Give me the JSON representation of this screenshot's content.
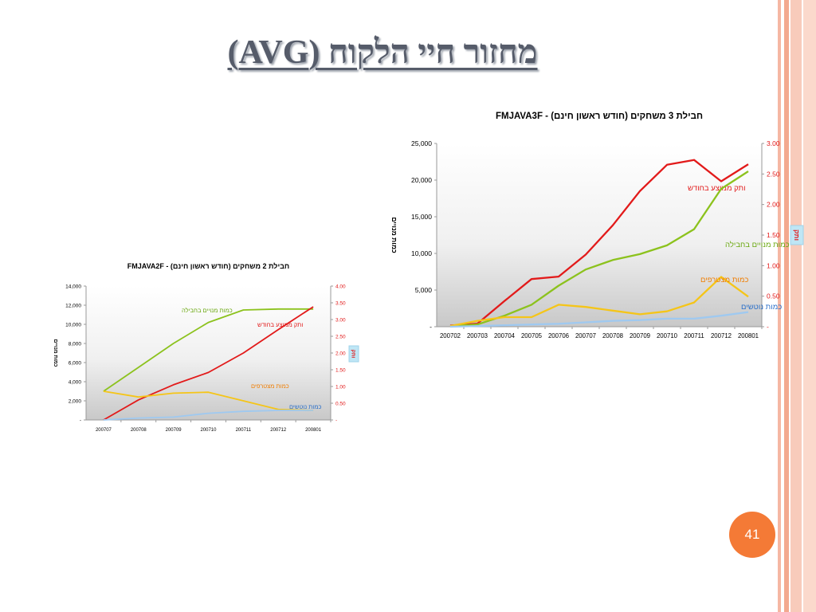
{
  "slide": {
    "title": "מחזור חיי הלקוח (AVG)",
    "page_number": "41"
  },
  "chart_data": [
    {
      "type": "line",
      "title": "חבילת 2 משחקים (חודש ראשון חינם) - FMJAVA2F",
      "categories": [
        "200707",
        "200708",
        "200709",
        "200710",
        "200711",
        "200712",
        "200801"
      ],
      "ylabel": "כמות מנויים",
      "y2label": "ותק",
      "ylim": [
        0,
        14000
      ],
      "y2lim": [
        0,
        4
      ],
      "yticks": [
        "-",
        "2,000",
        "4,000",
        "6,000",
        "8,000",
        "10,000",
        "12,000",
        "14,000"
      ],
      "y2ticks": [
        "-",
        "0.50",
        "1.00",
        "1.50",
        "2.00",
        "2.50",
        "3.00",
        "3.50",
        "4.00"
      ],
      "grid": false,
      "series": [
        {
          "name": "כמות מנויים בחבילה",
          "axis": "left",
          "color": "#8cc21d",
          "values": [
            3000,
            5500,
            8000,
            10200,
            11500,
            11600,
            11600
          ]
        },
        {
          "name": "ותק ממוצע בחודש",
          "axis": "right",
          "color": "#e21a1a",
          "values": [
            0,
            0.6,
            1.05,
            1.42,
            2.0,
            2.7,
            3.38
          ]
        },
        {
          "name": "כמות מצטרפים",
          "axis": "left",
          "color": "#f5c518",
          "values": [
            3000,
            2400,
            2800,
            2900,
            2000,
            1100,
            1000
          ]
        },
        {
          "name": "כמות נוטשים",
          "axis": "left",
          "color": "#9fc9f0",
          "values": [
            0,
            200,
            300,
            700,
            900,
            1000,
            1000
          ]
        }
      ]
    },
    {
      "type": "line",
      "title": "חבילת 3 משחקים (חודש ראשון חינם) - FMJAVA3F",
      "categories": [
        "200702",
        "200703",
        "200704",
        "200705",
        "200706",
        "200707",
        "200708",
        "200709",
        "200710",
        "200711",
        "200712",
        "200801"
      ],
      "ylabel": "כמות מנויים",
      "y2label": "ותק",
      "ylim": [
        0,
        25000
      ],
      "y2lim": [
        0,
        3
      ],
      "yticks": [
        "-",
        "5,000",
        "10,000",
        "15,000",
        "20,000",
        "25,000"
      ],
      "y2ticks": [
        "-",
        "0.50",
        "1.00",
        "1.50",
        "2.00",
        "2.50",
        "3.00"
      ],
      "grid": false,
      "series": [
        {
          "name": "ותק ממוצע בחודש",
          "axis": "right",
          "color": "#e21a1a",
          "values": [
            0.02,
            0.05,
            0.42,
            0.78,
            0.82,
            1.18,
            1.66,
            2.22,
            2.65,
            2.73,
            2.38,
            2.66
          ]
        },
        {
          "name": "כמות מנויים בחבילה",
          "axis": "left",
          "color": "#8cc21d",
          "values": [
            100,
            300,
            1500,
            3000,
            5600,
            7800,
            9100,
            9900,
            11100,
            13300,
            18800,
            21200
          ]
        },
        {
          "name": "כמות מצטרפים",
          "axis": "left",
          "color": "#f5c518",
          "values": [
            100,
            800,
            1300,
            1300,
            3000,
            2700,
            2200,
            1700,
            2100,
            3300,
            6800,
            4100
          ]
        },
        {
          "name": "כמות נוטשים",
          "axis": "left",
          "color": "#9fc9f0",
          "values": [
            0,
            100,
            200,
            300,
            400,
            600,
            800,
            900,
            1100,
            1100,
            1500,
            2000
          ]
        }
      ]
    }
  ]
}
